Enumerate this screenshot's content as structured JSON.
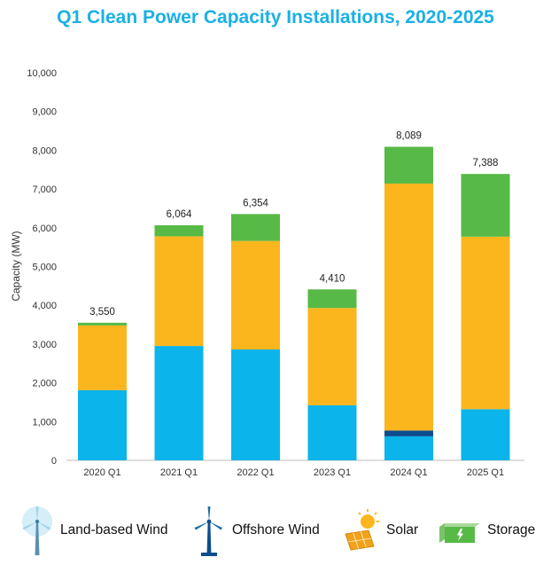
{
  "chart_data": {
    "type": "bar",
    "stacked": true,
    "title": "Q1 Clean Power Capacity Installations, 2020-2025",
    "ylabel": "Capacity (MW)",
    "xlabel": "",
    "ylim": [
      0,
      10000
    ],
    "yticks": [
      "0",
      "1,000",
      "2,000",
      "3,000",
      "4,000",
      "5,000",
      "6,000",
      "7,000",
      "8,000",
      "9,000",
      "10,000"
    ],
    "ytick_values": [
      0,
      1000,
      2000,
      3000,
      4000,
      5000,
      6000,
      7000,
      8000,
      9000,
      10000
    ],
    "categories": [
      "2020 Q1",
      "2021 Q1",
      "2022 Q1",
      "2023 Q1",
      "2024 Q1",
      "2025 Q1"
    ],
    "totals": [
      "3,550",
      "6,064",
      "6,354",
      "4,410",
      "8,089",
      "7,388"
    ],
    "series": [
      {
        "name": "Land-based Wind",
        "color": "#0bb4ea",
        "values": [
          1810,
          2950,
          2860,
          1420,
          620,
          1320
        ]
      },
      {
        "name": "Offshore Wind",
        "color": "#0d4d8e",
        "values": [
          0,
          0,
          0,
          0,
          150,
          0
        ]
      },
      {
        "name": "Solar",
        "color": "#fbb61e",
        "values": [
          1670,
          2830,
          2800,
          2510,
          6370,
          4450
        ]
      },
      {
        "name": "Storage",
        "color": "#57b946",
        "values": [
          70,
          284,
          694,
          480,
          949,
          1618
        ]
      }
    ],
    "grid": false,
    "legend_position": "bottom"
  },
  "legend": {
    "items": [
      {
        "label": "Land-based Wind",
        "icon": "land-wind-turbine-icon"
      },
      {
        "label": "Offshore Wind",
        "icon": "offshore-wind-turbine-icon"
      },
      {
        "label": "Solar",
        "icon": "solar-panel-icon"
      },
      {
        "label": "Storage",
        "icon": "battery-storage-icon"
      }
    ]
  }
}
